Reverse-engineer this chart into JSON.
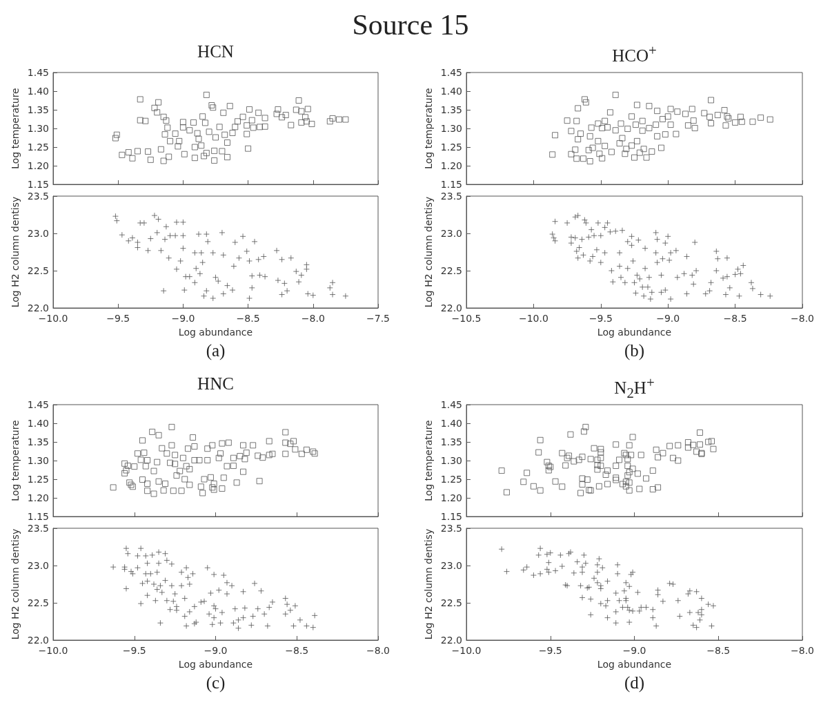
{
  "chart_data": [
    {
      "type": "other",
      "title": "Source 15"
    },
    {
      "type": "scatter",
      "title": "HCN",
      "ylabel": "Log temperature",
      "tick_labels": "y",
      "marker": "square",
      "color": "#555555",
      "xlim": [
        -10,
        -7.5
      ],
      "xticks": [
        -10,
        -9.5,
        -9,
        -8.5,
        -8,
        -7.5
      ],
      "ylim": [
        1.15,
        1.45
      ],
      "yticks": [
        1.15,
        {
          "value": 1.2,
          "label": "1.20"
        },
        1.25,
        {
          "value": 1.3,
          "label": "1.30"
        },
        1.35,
        {
          "value": 1.4,
          "label": "1.40"
        },
        1.45
      ],
      "x": [
        -9.52,
        -9.51,
        -9.47,
        -9.42,
        -9.39,
        -9.35,
        -9.33,
        -9.33,
        -9.29,
        -9.27,
        -9.25,
        -9.22,
        -9.2,
        -9.19,
        -9.17,
        -9.15,
        -9.15,
        -9.13,
        -9.12,
        -9.14,
        -9.11,
        -9.1,
        -9.06,
        -9.04,
        -9.03,
        -9.0,
        -9.0,
        -8.99,
        -8.95,
        -8.92,
        -8.91,
        -8.91,
        -8.89,
        -8.88,
        -8.86,
        -8.85,
        -8.84,
        -8.83,
        -8.82,
        -8.82,
        -8.8,
        -8.78,
        -8.77,
        -8.76,
        -8.76,
        -8.75,
        -8.72,
        -8.7,
        -8.69,
        -8.68,
        -8.66,
        -8.66,
        -8.64,
        -8.62,
        -8.6,
        -8.58,
        -8.54,
        -8.51,
        -8.51,
        -8.49,
        -8.5,
        -8.47,
        -8.46,
        -8.42,
        -8.41,
        -8.37,
        -8.37,
        -8.28,
        -8.27,
        -8.24,
        -8.21,
        -8.17,
        -8.13,
        -8.11,
        -8.09,
        -8.09,
        -8.06,
        -8.05,
        -8.04,
        -8.01,
        -7.87,
        -7.85,
        -7.8,
        -7.75
      ],
      "values": [
        1.274,
        1.283,
        1.229,
        1.236,
        1.22,
        1.239,
        1.378,
        1.322,
        1.32,
        1.238,
        1.216,
        1.355,
        1.343,
        1.37,
        1.244,
        1.213,
        1.331,
        1.321,
        1.302,
        1.284,
        1.224,
        1.266,
        1.286,
        1.252,
        1.266,
        1.317,
        1.303,
        1.231,
        1.295,
        1.316,
        1.221,
        1.25,
        1.287,
        1.272,
        1.254,
        1.332,
        1.226,
        1.315,
        1.39,
        1.234,
        1.291,
        1.362,
        1.356,
        1.214,
        1.24,
        1.276,
        1.304,
        1.239,
        1.342,
        1.283,
        1.262,
        1.223,
        1.36,
        1.288,
        1.304,
        1.319,
        1.331,
        1.308,
        1.285,
        1.351,
        1.246,
        1.322,
        1.302,
        1.342,
        1.304,
        1.328,
        1.305,
        1.339,
        1.351,
        1.33,
        1.336,
        1.309,
        1.35,
        1.375,
        1.346,
        1.316,
        1.33,
        1.319,
        1.352,
        1.312,
        1.319,
        1.327,
        1.324,
        1.324
      ]
    },
    {
      "type": "scatter",
      "xlabel": "Log abundance",
      "ylabel": "Log H2 column dentisy",
      "annotations": [
        "(a)"
      ],
      "marker": "cross",
      "color": "#555555",
      "xlim": [
        -10,
        -7.5
      ],
      "xticks": [
        {
          "value": -10,
          "label": "−10.0"
        },
        {
          "value": -9.5,
          "label": "−9.5"
        },
        {
          "value": -9,
          "label": "−9.0"
        },
        {
          "value": -8.5,
          "label": "−8.5"
        },
        {
          "value": -8,
          "label": "−8.0"
        },
        {
          "value": -7.5,
          "label": "−7.5"
        }
      ],
      "ylim": [
        22,
        23.5
      ],
      "yticks": [
        {
          "value": 22,
          "label": "22.0"
        },
        22.5,
        {
          "value": 23,
          "label": "23.0"
        },
        23.5
      ],
      "x": [
        -9.52,
        -9.51,
        -9.47,
        -9.42,
        -9.39,
        -9.35,
        -9.35,
        -9.33,
        -9.3,
        -9.27,
        -9.25,
        -9.22,
        -9.2,
        -9.19,
        -9.17,
        -9.15,
        -9.14,
        -9.13,
        -9.1,
        -9.11,
        -9.06,
        -9.05,
        -9.05,
        -9.02,
        -9.0,
        -9.0,
        -9.0,
        -8.99,
        -8.98,
        -8.95,
        -8.91,
        -8.91,
        -8.9,
        -8.88,
        -8.87,
        -8.86,
        -8.85,
        -8.84,
        -8.82,
        -8.82,
        -8.81,
        -8.77,
        -8.77,
        -8.75,
        -8.73,
        -8.7,
        -8.69,
        -8.69,
        -8.66,
        -8.62,
        -8.61,
        -8.6,
        -8.57,
        -8.54,
        -8.51,
        -8.49,
        -8.49,
        -8.47,
        -8.47,
        -8.45,
        -8.42,
        -8.41,
        -8.38,
        -8.37,
        -8.28,
        -8.27,
        -8.24,
        -8.24,
        -8.22,
        -8.2,
        -8.17,
        -8.13,
        -8.11,
        -8.09,
        -8.05,
        -8.05,
        -8.04,
        -8.0,
        -7.87,
        -7.85,
        -7.85,
        -7.75
      ],
      "values": [
        23.23,
        23.17,
        22.98,
        22.9,
        22.94,
        22.88,
        22.81,
        23.14,
        23.14,
        22.77,
        22.93,
        23.24,
        23.01,
        23.19,
        22.77,
        22.23,
        22.92,
        23.09,
        22.97,
        22.67,
        22.97,
        23.15,
        22.52,
        22.63,
        23.15,
        22.97,
        22.8,
        22.24,
        22.42,
        22.42,
        22.74,
        22.34,
        22.53,
        22.99,
        22.46,
        22.74,
        22.61,
        22.16,
        22.99,
        22.23,
        22.89,
        22.74,
        22.13,
        22.41,
        22.36,
        23.01,
        22.71,
        22.19,
        22.3,
        22.24,
        22.56,
        22.88,
        22.67,
        22.96,
        22.76,
        22.63,
        22.13,
        22.27,
        22.43,
        22.89,
        22.65,
        22.44,
        22.69,
        22.42,
        22.77,
        22.37,
        22.65,
        22.18,
        22.33,
        22.23,
        22.67,
        22.49,
        22.35,
        22.44,
        22.58,
        22.52,
        22.19,
        22.17,
        22.27,
        22.34,
        22.18,
        22.16
      ]
    },
    {
      "type": "scatter",
      "title": "HCO$^{+}$",
      "ylabel": "Log temperature",
      "tick_labels": "y",
      "marker": "square",
      "color": "#555555",
      "xlim": [
        -10.5,
        -8
      ],
      "xticks": [
        -10.5,
        -10,
        -9.5,
        -9,
        -8.5,
        -8
      ],
      "ylim": [
        1.15,
        1.45
      ],
      "yticks": [
        1.15,
        {
          "value": 1.2,
          "label": "1.20"
        },
        1.25,
        {
          "value": 1.3,
          "label": "1.30"
        },
        1.35,
        {
          "value": 1.4,
          "label": "1.40"
        },
        1.45
      ],
      "x": [
        -9.86,
        -9.84,
        -9.75,
        -9.72,
        -9.72,
        -9.69,
        -9.68,
        -9.68,
        -9.67,
        -9.67,
        -9.65,
        -9.63,
        -9.62,
        -9.61,
        -9.59,
        -9.58,
        -9.58,
        -9.57,
        -9.56,
        -9.52,
        -9.52,
        -9.51,
        -9.49,
        -9.49,
        -9.47,
        -9.47,
        -9.45,
        -9.43,
        -9.42,
        -9.39,
        -9.39,
        -9.36,
        -9.35,
        -9.34,
        -9.32,
        -9.31,
        -9.3,
        -9.27,
        -9.27,
        -9.25,
        -9.24,
        -9.23,
        -9.23,
        -9.21,
        -9.19,
        -9.19,
        -9.18,
        -9.16,
        -9.14,
        -9.14,
        -9.12,
        -9.09,
        -9.08,
        -9.08,
        -9.05,
        -9.04,
        -9.02,
        -9.0,
        -8.98,
        -8.98,
        -8.94,
        -8.93,
        -8.87,
        -8.85,
        -8.82,
        -8.81,
        -8.8,
        -8.73,
        -8.69,
        -8.68,
        -8.68,
        -8.63,
        -8.58,
        -8.56,
        -8.57,
        -8.55,
        -8.5,
        -8.46,
        -8.45,
        -8.37,
        -8.31,
        -8.24
      ],
      "values": [
        1.23,
        1.282,
        1.321,
        1.231,
        1.293,
        1.243,
        1.32,
        1.219,
        1.354,
        1.271,
        1.286,
        1.219,
        1.378,
        1.37,
        1.242,
        1.279,
        1.212,
        1.302,
        1.248,
        1.313,
        1.266,
        1.232,
        1.301,
        1.22,
        1.253,
        1.32,
        1.303,
        1.343,
        1.237,
        1.39,
        1.295,
        1.26,
        1.313,
        1.274,
        1.232,
        1.245,
        1.299,
        1.332,
        1.254,
        1.222,
        1.31,
        1.266,
        1.363,
        1.235,
        1.294,
        1.32,
        1.245,
        1.222,
        1.36,
        1.301,
        1.238,
        1.31,
        1.279,
        1.347,
        1.248,
        1.325,
        1.284,
        1.332,
        1.31,
        1.352,
        1.285,
        1.345,
        1.339,
        1.308,
        1.352,
        1.321,
        1.301,
        1.341,
        1.331,
        1.314,
        1.376,
        1.336,
        1.349,
        1.332,
        1.308,
        1.327,
        1.316,
        1.331,
        1.318,
        1.318,
        1.329,
        1.324
      ]
    },
    {
      "type": "scatter",
      "xlabel": "Log abundance",
      "ylabel": "Log H2 column dentisy",
      "annotations": [
        "(b)"
      ],
      "marker": "cross",
      "color": "#555555",
      "xlim": [
        -10.5,
        -8
      ],
      "xticks": [
        {
          "value": -10.5,
          "label": "−10.5"
        },
        {
          "value": -10,
          "label": "−10.0"
        },
        {
          "value": -9.5,
          "label": "−9.5"
        },
        {
          "value": -9,
          "label": "−9.0"
        },
        {
          "value": -8.5,
          "label": "−8.5"
        },
        {
          "value": -8,
          "label": "−8.0"
        }
      ],
      "ylim": [
        22,
        23.5
      ],
      "yticks": [
        {
          "value": 22,
          "label": "22.0"
        },
        22.5,
        {
          "value": 23,
          "label": "23.0"
        },
        23.5
      ],
      "x": [
        -9.86,
        -9.85,
        -9.84,
        -9.84,
        -9.75,
        -9.72,
        -9.72,
        -9.69,
        -9.69,
        -9.68,
        -9.67,
        -9.67,
        -9.66,
        -9.64,
        -9.63,
        -9.62,
        -9.61,
        -9.59,
        -9.58,
        -9.57,
        -9.56,
        -9.55,
        -9.52,
        -9.53,
        -9.5,
        -9.5,
        -9.47,
        -9.47,
        -9.45,
        -9.43,
        -9.42,
        -9.41,
        -9.39,
        -9.36,
        -9.36,
        -9.35,
        -9.34,
        -9.32,
        -9.3,
        -9.3,
        -9.27,
        -9.27,
        -9.26,
        -9.25,
        -9.24,
        -9.23,
        -9.22,
        -9.21,
        -9.19,
        -9.18,
        -9.17,
        -9.17,
        -9.15,
        -9.14,
        -9.13,
        -9.12,
        -9.09,
        -9.09,
        -9.08,
        -9.08,
        -9.05,
        -9.05,
        -9.04,
        -9.02,
        -9.02,
        -9.0,
        -8.99,
        -8.98,
        -8.98,
        -8.94,
        -8.93,
        -8.88,
        -8.86,
        -8.86,
        -8.82,
        -8.81,
        -8.8,
        -8.79,
        -8.72,
        -8.69,
        -8.68,
        -8.64,
        -8.64,
        -8.63,
        -8.59,
        -8.57,
        -8.56,
        -8.56,
        -8.54,
        -8.5,
        -8.48,
        -8.47,
        -8.46,
        -8.44,
        -8.38,
        -8.37,
        -8.31,
        -8.24
      ],
      "values": [
        22.99,
        22.94,
        23.16,
        22.9,
        23.14,
        22.95,
        22.87,
        22.94,
        23.22,
        22.76,
        22.67,
        23.24,
        22.81,
        22.92,
        22.71,
        23.18,
        23.14,
        22.95,
        22.63,
        23.05,
        22.69,
        22.97,
        23.14,
        22.78,
        22.61,
        22.97,
        23.08,
        22.74,
        23.14,
        23.02,
        22.5,
        22.35,
        23.03,
        22.74,
        22.56,
        22.41,
        23.04,
        22.34,
        22.53,
        22.89,
        22.96,
        22.84,
        22.63,
        22.34,
        22.2,
        22.44,
        22.91,
        22.39,
        22.28,
        22.16,
        22.53,
        22.8,
        22.28,
        22.41,
        22.12,
        22.21,
        23.01,
        22.74,
        22.92,
        22.61,
        22.21,
        22.44,
        22.66,
        22.87,
        22.24,
        22.96,
        22.64,
        22.12,
        22.74,
        22.77,
        22.41,
        22.46,
        22.69,
        22.19,
        22.44,
        22.32,
        22.88,
        22.5,
        22.19,
        22.23,
        22.34,
        22.76,
        22.5,
        22.66,
        22.4,
        22.18,
        22.42,
        22.67,
        22.27,
        22.45,
        22.52,
        22.16,
        22.46,
        22.57,
        22.34,
        22.26,
        22.18,
        22.16
      ]
    },
    {
      "type": "scatter",
      "title": "HNC",
      "ylabel": "Log temperature",
      "tick_labels": "y",
      "marker": "square",
      "color": "#555555",
      "xlim": [
        -10,
        -8
      ],
      "xticks": [
        -10,
        -9.5,
        -9,
        -8.5,
        -8
      ],
      "ylim": [
        1.15,
        1.45
      ],
      "yticks": [
        1.15,
        {
          "value": 1.2,
          "label": "1.20"
        },
        1.25,
        {
          "value": 1.3,
          "label": "1.30"
        },
        1.35,
        {
          "value": 1.4,
          "label": "1.40"
        },
        1.45
      ],
      "x": [
        -9.63,
        -9.56,
        -9.56,
        -9.55,
        -9.54,
        -9.53,
        -9.52,
        -9.51,
        -9.5,
        -9.48,
        -9.46,
        -9.45,
        -9.45,
        -9.44,
        -9.43,
        -9.42,
        -9.42,
        -9.42,
        -9.39,
        -9.38,
        -9.38,
        -9.36,
        -9.35,
        -9.35,
        -9.33,
        -9.32,
        -9.31,
        -9.3,
        -9.28,
        -9.27,
        -9.27,
        -9.26,
        -9.25,
        -9.25,
        -9.24,
        -9.22,
        -9.21,
        -9.2,
        -9.19,
        -9.18,
        -9.17,
        -9.16,
        -9.16,
        -9.14,
        -9.13,
        -9.13,
        -9.1,
        -9.09,
        -9.08,
        -9.07,
        -9.05,
        -9.05,
        -9.03,
        -9.02,
        -9.02,
        -9.01,
        -9.01,
        -8.98,
        -8.97,
        -8.96,
        -8.96,
        -8.95,
        -8.93,
        -8.92,
        -8.89,
        -8.89,
        -8.87,
        -8.85,
        -8.83,
        -8.83,
        -8.82,
        -8.81,
        -8.77,
        -8.74,
        -8.73,
        -8.71,
        -8.67,
        -8.67,
        -8.65,
        -8.57,
        -8.57,
        -8.57,
        -8.54,
        -8.52,
        -8.51,
        -8.47,
        -8.44,
        -8.4,
        -8.39
      ],
      "values": [
        1.228,
        1.292,
        1.266,
        1.274,
        1.286,
        1.241,
        1.235,
        1.23,
        1.284,
        1.319,
        1.302,
        1.249,
        1.354,
        1.321,
        1.285,
        1.219,
        1.301,
        1.238,
        1.377,
        1.272,
        1.211,
        1.296,
        1.368,
        1.244,
        1.333,
        1.22,
        1.238,
        1.319,
        1.294,
        1.39,
        1.341,
        1.219,
        1.315,
        1.291,
        1.26,
        1.272,
        1.219,
        1.307,
        1.25,
        1.285,
        1.332,
        1.235,
        1.277,
        1.362,
        1.338,
        1.301,
        1.301,
        1.23,
        1.213,
        1.25,
        1.332,
        1.301,
        1.255,
        1.228,
        1.341,
        1.222,
        1.238,
        1.307,
        1.319,
        1.346,
        1.225,
        1.254,
        1.285,
        1.348,
        1.307,
        1.286,
        1.241,
        1.312,
        1.341,
        1.27,
        1.304,
        1.321,
        1.341,
        1.313,
        1.245,
        1.308,
        1.352,
        1.315,
        1.318,
        1.318,
        1.376,
        1.348,
        1.345,
        1.352,
        1.33,
        1.318,
        1.329,
        1.324,
        1.319
      ]
    },
    {
      "type": "scatter",
      "xlabel": "Log abundance",
      "ylabel": "Log H2 column dentisy",
      "annotations": [
        "(c)"
      ],
      "marker": "cross",
      "color": "#555555",
      "xlim": [
        -10,
        -8
      ],
      "xticks": [
        {
          "value": -10,
          "label": "−10.0"
        },
        {
          "value": -9.5,
          "label": "−9.5"
        },
        {
          "value": -9,
          "label": "−9.0"
        },
        {
          "value": -8.5,
          "label": "−8.5"
        },
        {
          "value": -8,
          "label": "−8.0"
        }
      ],
      "ylim": [
        22,
        23.5
      ],
      "yticks": [
        {
          "value": 22,
          "label": "22.0"
        },
        22.5,
        {
          "value": 23,
          "label": "23.0"
        },
        23.5
      ],
      "x": [
        -9.63,
        -9.56,
        -9.56,
        -9.55,
        -9.55,
        -9.54,
        -9.52,
        -9.51,
        -9.48,
        -9.48,
        -9.46,
        -9.46,
        -9.45,
        -9.43,
        -9.43,
        -9.42,
        -9.42,
        -9.42,
        -9.4,
        -9.39,
        -9.38,
        -9.37,
        -9.36,
        -9.36,
        -9.35,
        -9.35,
        -9.34,
        -9.34,
        -9.33,
        -9.31,
        -9.31,
        -9.3,
        -9.3,
        -9.28,
        -9.27,
        -9.27,
        -9.26,
        -9.25,
        -9.24,
        -9.24,
        -9.21,
        -9.21,
        -9.19,
        -9.19,
        -9.18,
        -9.18,
        -9.17,
        -9.16,
        -9.16,
        -9.14,
        -9.13,
        -9.13,
        -9.12,
        -9.09,
        -9.07,
        -9.05,
        -9.04,
        -9.03,
        -9.02,
        -9.01,
        -9.01,
        -9.01,
        -9.0,
        -8.98,
        -8.97,
        -8.96,
        -8.95,
        -8.93,
        -8.93,
        -8.9,
        -8.89,
        -8.88,
        -8.86,
        -8.86,
        -8.83,
        -8.83,
        -8.82,
        -8.78,
        -8.77,
        -8.76,
        -8.74,
        -8.72,
        -8.7,
        -8.68,
        -8.67,
        -8.65,
        -8.57,
        -8.57,
        -8.56,
        -8.54,
        -8.52,
        -8.51,
        -8.48,
        -8.44,
        -8.4,
        -8.39
      ],
      "values": [
        22.98,
        22.98,
        22.95,
        23.23,
        22.69,
        23.16,
        22.92,
        22.89,
        22.97,
        23.13,
        22.49,
        23.23,
        22.76,
        23.13,
        22.89,
        23.03,
        22.79,
        22.6,
        22.89,
        23.14,
        22.75,
        22.53,
        22.68,
        22.91,
        23.18,
        23.03,
        22.73,
        22.23,
        22.64,
        22.8,
        23.16,
        23.07,
        22.53,
        22.41,
        23.02,
        22.73,
        22.52,
        22.62,
        22.45,
        22.4,
        22.73,
        22.91,
        22.32,
        22.56,
        22.97,
        22.19,
        22.84,
        22.75,
        22.38,
        22.89,
        22.22,
        22.45,
        22.24,
        22.51,
        22.52,
        22.97,
        22.35,
        22.63,
        22.21,
        22.46,
        22.88,
        22.3,
        22.42,
        22.67,
        22.23,
        22.37,
        22.87,
        22.77,
        22.62,
        22.73,
        22.23,
        22.42,
        22.27,
        22.16,
        22.3,
        22.65,
        22.43,
        22.2,
        22.32,
        22.76,
        22.42,
        22.66,
        22.35,
        22.19,
        22.44,
        22.51,
        22.56,
        22.35,
        22.48,
        22.4,
        22.19,
        22.46,
        22.27,
        22.19,
        22.17,
        22.33
      ]
    },
    {
      "type": "scatter",
      "title": "N$_{2}$H$^{+}$",
      "ylabel": "Log temperature",
      "tick_labels": "y",
      "marker": "square",
      "color": "#555555",
      "xlim": [
        -10,
        -8
      ],
      "xticks": [
        -10,
        -9.5,
        -9,
        -8.5,
        -8
      ],
      "ylim": [
        1.15,
        1.45
      ],
      "yticks": [
        1.15,
        {
          "value": 1.2,
          "label": "1.20"
        },
        1.25,
        {
          "value": 1.3,
          "label": "1.30"
        },
        1.35,
        {
          "value": 1.4,
          "label": "1.40"
        },
        1.45
      ],
      "x": [
        -9.79,
        -9.76,
        -9.66,
        -9.64,
        -9.6,
        -9.57,
        -9.56,
        -9.56,
        -9.52,
        -9.51,
        -9.51,
        -9.5,
        -9.47,
        -9.43,
        -9.43,
        -9.41,
        -9.4,
        -9.39,
        -9.38,
        -9.36,
        -9.33,
        -9.32,
        -9.31,
        -9.31,
        -9.31,
        -9.3,
        -9.29,
        -9.28,
        -9.27,
        -9.26,
        -9.26,
        -9.24,
        -9.22,
        -9.22,
        -9.22,
        -9.21,
        -9.2,
        -9.2,
        -9.2,
        -9.2,
        -9.17,
        -9.16,
        -9.16,
        -9.11,
        -9.11,
        -9.11,
        -9.11,
        -9.09,
        -9.07,
        -9.06,
        -9.05,
        -9.05,
        -9.05,
        -9.04,
        -9.04,
        -9.04,
        -9.03,
        -9.03,
        -9.03,
        -9.03,
        -9.02,
        -9.01,
        -9.01,
        -8.98,
        -8.97,
        -8.96,
        -8.93,
        -8.89,
        -8.89,
        -8.87,
        -8.86,
        -8.86,
        -8.83,
        -8.79,
        -8.77,
        -8.74,
        -8.74,
        -8.68,
        -8.68,
        -8.65,
        -8.63,
        -8.61,
        -8.61,
        -8.6,
        -8.6,
        -8.56,
        -8.54,
        -8.53
      ],
      "values": [
        1.273,
        1.215,
        1.243,
        1.267,
        1.231,
        1.322,
        1.355,
        1.22,
        1.296,
        1.286,
        1.274,
        1.283,
        1.244,
        1.32,
        1.23,
        1.287,
        1.307,
        1.313,
        1.37,
        1.298,
        1.302,
        1.213,
        1.252,
        1.236,
        1.31,
        1.378,
        1.39,
        1.249,
        1.221,
        1.22,
        1.304,
        1.333,
        1.288,
        1.302,
        1.276,
        1.231,
        1.286,
        1.307,
        1.331,
        1.322,
        1.262,
        1.273,
        1.237,
        1.286,
        1.254,
        1.343,
        1.248,
        1.302,
        1.237,
        1.32,
        1.243,
        1.231,
        1.315,
        1.286,
        1.26,
        1.304,
        1.22,
        1.241,
        1.341,
        1.269,
        1.315,
        1.278,
        1.363,
        1.265,
        1.224,
        1.315,
        1.252,
        1.223,
        1.273,
        1.329,
        1.228,
        1.309,
        1.32,
        1.339,
        1.307,
        1.3,
        1.341,
        1.349,
        1.335,
        1.342,
        1.324,
        1.375,
        1.343,
        1.318,
        1.32,
        1.35,
        1.352,
        1.331
      ]
    },
    {
      "type": "scatter",
      "xlabel": "Log abundance",
      "ylabel": "Log H2 column dentisy",
      "annotations": [
        "(d)"
      ],
      "marker": "cross",
      "color": "#555555",
      "xlim": [
        -10,
        -8
      ],
      "xticks": [
        {
          "value": -10,
          "label": "−10.0"
        },
        {
          "value": -9.5,
          "label": "−9.5"
        },
        {
          "value": -9,
          "label": "−9.0"
        },
        {
          "value": -8.5,
          "label": "−8.5"
        },
        {
          "value": -8,
          "label": "−8.0"
        }
      ],
      "ylim": [
        22,
        23.5
      ],
      "yticks": [
        {
          "value": 22,
          "label": "22.0"
        },
        22.5,
        {
          "value": 23,
          "label": "23.0"
        },
        23.5
      ],
      "x": [
        -9.79,
        -9.76,
        -9.66,
        -9.64,
        -9.6,
        -9.57,
        -9.56,
        -9.56,
        -9.52,
        -9.52,
        -9.51,
        -9.51,
        -9.5,
        -9.47,
        -9.44,
        -9.43,
        -9.41,
        -9.4,
        -9.39,
        -9.38,
        -9.36,
        -9.34,
        -9.32,
        -9.31,
        -9.31,
        -9.31,
        -9.3,
        -9.29,
        -9.28,
        -9.27,
        -9.26,
        -9.26,
        -9.24,
        -9.22,
        -9.22,
        -9.22,
        -9.21,
        -9.2,
        -9.2,
        -9.2,
        -9.19,
        -9.17,
        -9.16,
        -9.16,
        -9.16,
        -9.11,
        -9.11,
        -9.11,
        -9.1,
        -9.1,
        -9.09,
        -9.07,
        -9.06,
        -9.05,
        -9.05,
        -9.05,
        -9.04,
        -9.03,
        -9.03,
        -9.03,
        -9.02,
        -9.01,
        -9.01,
        -8.98,
        -8.97,
        -8.96,
        -8.93,
        -8.89,
        -8.89,
        -8.87,
        -8.86,
        -8.86,
        -8.83,
        -8.79,
        -8.77,
        -8.74,
        -8.73,
        -8.68,
        -8.67,
        -8.67,
        -8.65,
        -8.63,
        -8.63,
        -8.62,
        -8.61,
        -8.6,
        -8.6,
        -8.6,
        -8.56,
        -8.54,
        -8.53
      ],
      "values": [
        23.22,
        22.92,
        22.94,
        22.98,
        22.87,
        23.14,
        23.23,
        22.89,
        23.15,
        22.95,
        22.91,
        23.04,
        23.17,
        22.93,
        23.14,
        22.99,
        22.74,
        22.73,
        23.16,
        23.18,
        22.9,
        23.05,
        22.73,
        22.57,
        22.91,
        22.98,
        23.14,
        23.03,
        22.7,
        22.71,
        22.55,
        22.34,
        22.83,
        23.01,
        22.91,
        22.77,
        23.09,
        22.73,
        22.69,
        22.49,
        22.97,
        22.46,
        22.79,
        22.53,
        22.3,
        22.23,
        22.63,
        22.38,
        23.01,
        22.89,
        22.53,
        22.44,
        22.66,
        22.53,
        22.56,
        22.77,
        22.44,
        22.4,
        22.24,
        22.72,
        22.88,
        22.91,
        22.39,
        22.64,
        22.39,
        22.44,
        22.44,
        22.3,
        22.41,
        22.19,
        22.61,
        22.67,
        22.52,
        22.76,
        22.75,
        22.53,
        22.32,
        22.62,
        22.66,
        22.37,
        22.2,
        22.65,
        22.17,
        22.37,
        22.27,
        22.56,
        22.41,
        22.34,
        22.48,
        22.19,
        22.46
      ]
    }
  ]
}
